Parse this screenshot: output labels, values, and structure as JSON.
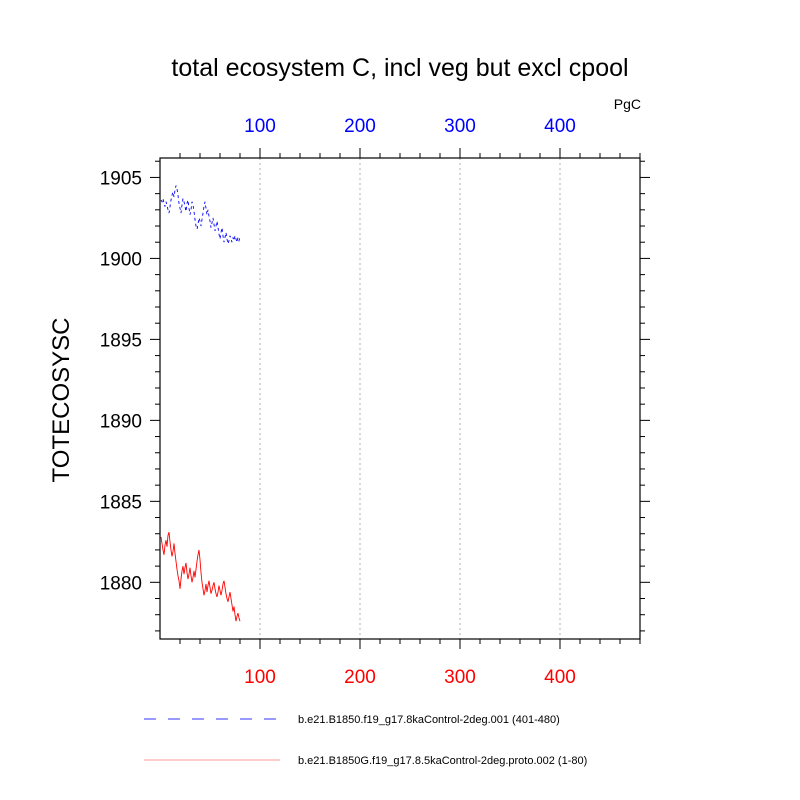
{
  "chart_data": {
    "type": "line",
    "title": "total ecosystem C, incl veg but excl cpool",
    "units": "PgC",
    "ylabel": "TOTECOSYSC",
    "xlabel": "",
    "xlim": [
      0,
      480
    ],
    "ylim": [
      1876.5,
      1906.2
    ],
    "y_ticks": [
      1880,
      1885,
      1890,
      1895,
      1900,
      1905
    ],
    "x_ticks_top": [
      100,
      200,
      300,
      400
    ],
    "x_ticks_bottom": [
      100,
      200,
      300,
      400
    ],
    "top_axis_color": "#0000ff",
    "bottom_axis_color": "#ff0000",
    "gridlines_x": true,
    "legend_position": "bottom",
    "series": [
      {
        "name": "b.e21.B1850.f19_g17.8kaControl-2deg.001 (401-480)",
        "color": "#0000ff",
        "dash": "dashed",
        "x": [
          1,
          2,
          3,
          4,
          5,
          6,
          7,
          8,
          9,
          10,
          11,
          12,
          13,
          14,
          15,
          16,
          17,
          18,
          19,
          20,
          21,
          22,
          23,
          24,
          25,
          26,
          27,
          28,
          29,
          30,
          31,
          32,
          33,
          34,
          35,
          36,
          37,
          38,
          39,
          40,
          41,
          42,
          43,
          44,
          45,
          46,
          47,
          48,
          49,
          50,
          51,
          52,
          53,
          54,
          55,
          56,
          57,
          58,
          59,
          60,
          61,
          62,
          63,
          64,
          65,
          66,
          67,
          68,
          69,
          70,
          71,
          72,
          73,
          74,
          75,
          76,
          77,
          78,
          79,
          80
        ],
        "values": [
          1903.6,
          1903.5,
          1903.7,
          1903.4,
          1903.2,
          1903.5,
          1903.3,
          1903.0,
          1902.8,
          1903.2,
          1903.6,
          1903.9,
          1904.1,
          1903.8,
          1904.2,
          1904.5,
          1904.3,
          1903.9,
          1903.4,
          1903.1,
          1902.8,
          1903.3,
          1903.7,
          1903.5,
          1903.2,
          1902.9,
          1903.4,
          1903.6,
          1903.1,
          1902.7,
          1903.0,
          1903.5,
          1903.3,
          1902.9,
          1902.4,
          1902.0,
          1901.8,
          1902.1,
          1902.5,
          1902.3,
          1902.0,
          1902.4,
          1902.8,
          1903.2,
          1903.5,
          1903.1,
          1902.7,
          1903.0,
          1902.6,
          1902.3,
          1901.9,
          1902.2,
          1902.5,
          1902.1,
          1901.7,
          1902.0,
          1902.3,
          1901.9,
          1901.5,
          1901.2,
          1901.6,
          1901.9,
          1901.4,
          1901.0,
          1901.3,
          1901.6,
          1901.2,
          1900.9,
          1901.1,
          1901.4,
          1901.2,
          1901.0,
          1901.3,
          1901.1,
          1901.4,
          1901.2,
          1901.0,
          1901.3,
          1901.1,
          1901.3
        ]
      },
      {
        "name": "b.e21.B1850G.f19_g17.8.5kaControl-2deg.proto.002 (1-80)",
        "color": "#ff0000",
        "dash": "solid",
        "x": [
          1,
          2,
          3,
          4,
          5,
          6,
          7,
          8,
          9,
          10,
          11,
          12,
          13,
          14,
          15,
          16,
          17,
          18,
          19,
          20,
          21,
          22,
          23,
          24,
          25,
          26,
          27,
          28,
          29,
          30,
          31,
          32,
          33,
          34,
          35,
          36,
          37,
          38,
          39,
          40,
          41,
          42,
          43,
          44,
          45,
          46,
          47,
          48,
          49,
          50,
          51,
          52,
          53,
          54,
          55,
          56,
          57,
          58,
          59,
          60,
          61,
          62,
          63,
          64,
          65,
          66,
          67,
          68,
          69,
          70,
          71,
          72,
          73,
          74,
          75,
          76,
          77,
          78,
          79,
          80
        ],
        "values": [
          1882.8,
          1882.4,
          1882.0,
          1881.7,
          1882.3,
          1882.6,
          1882.2,
          1882.9,
          1883.1,
          1882.5,
          1882.0,
          1881.6,
          1881.9,
          1882.4,
          1881.8,
          1881.3,
          1880.8,
          1880.4,
          1880.1,
          1879.6,
          1880.2,
          1880.7,
          1881.0,
          1880.5,
          1880.9,
          1881.2,
          1880.6,
          1880.2,
          1880.5,
          1880.9,
          1880.4,
          1880.0,
          1880.3,
          1880.7,
          1880.3,
          1880.8,
          1881.3,
          1881.7,
          1882.0,
          1881.4,
          1880.6,
          1880.0,
          1879.6,
          1879.2,
          1879.5,
          1879.9,
          1879.4,
          1879.8,
          1880.1,
          1879.7,
          1879.3,
          1879.5,
          1879.8,
          1880.0,
          1879.6,
          1879.3,
          1879.1,
          1879.4,
          1879.8,
          1879.5,
          1879.2,
          1879.5,
          1879.9,
          1880.1,
          1879.7,
          1879.3,
          1879.0,
          1878.8,
          1879.1,
          1879.4,
          1879.0,
          1878.6,
          1878.2,
          1878.5,
          1878.0,
          1877.6,
          1877.9,
          1878.1,
          1877.8,
          1877.6
        ]
      }
    ]
  }
}
